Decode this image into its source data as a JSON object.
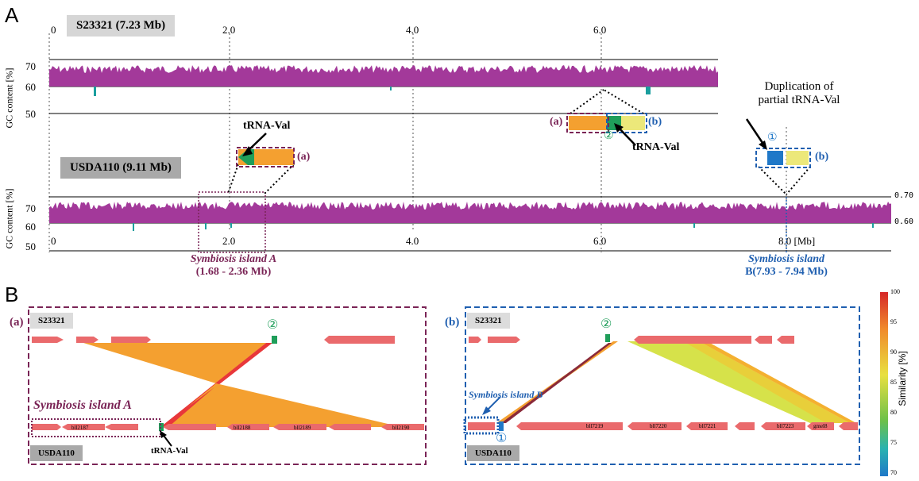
{
  "panels": {
    "a": "A",
    "b": "B"
  },
  "top": {
    "genome1": "S23321 (7.23 Mb)",
    "genome2": "USDA110 (9.11 Mb)",
    "gc_axis_label": "GC content  [%]",
    "gc_ticks_top": [
      "70",
      "60",
      "50"
    ],
    "gc_ticks_bottom": [
      "70",
      "60",
      "50"
    ],
    "scale_top": [
      "0",
      "2.0",
      "4.0",
      "6.0"
    ],
    "scale_bottom": [
      "0",
      "2.0",
      "4.0",
      "6.0",
      "8.0 [Mb]"
    ],
    "right_ticks": [
      "0.70",
      "0.60"
    ],
    "trna_label": "tRNA-Val",
    "trna_label2": "tRNA-Val",
    "duplication_note_line1": "Duplication of",
    "duplication_note_line2": "partial tRNA-Val",
    "mark_a": "(a)",
    "mark_a2": "(a)",
    "mark_b": "(b)",
    "mark_b2": "(b)",
    "circle_1": "①",
    "circle_2": "②",
    "island_a_title": "Symbiosis island A",
    "island_a_range": "(1.68 - 2.36 Mb)",
    "island_b_title": "Symbiosis island",
    "island_b_range": "B(7.93 - 7.94 Mb)"
  },
  "bottom": {
    "left_tag": "(a)",
    "right_tag": "(b)",
    "s_label": "S23321",
    "u_label": "USDA110",
    "s_label_r": "S23321",
    "u_label_r": "USDA110",
    "island_a": "Symbiosis island A",
    "island_b": "Symbiosis island B",
    "trna_val": "tRNA-Val",
    "circle_2": "②",
    "circle_1": "①",
    "genes_left": [
      "bll2187",
      "bll2188",
      "bll2189",
      "bll2190"
    ],
    "genes_right": [
      "bll7219",
      "bll7220",
      "bll7221",
      "bll7223",
      "gmel8"
    ],
    "similarity_label": "Similarity [%]",
    "similarity_ticks": [
      "100",
      "95",
      "90",
      "85",
      "80",
      "75",
      "70"
    ]
  },
  "colors": {
    "gc": "#a3399a",
    "gc_low": "#1a9e9e",
    "orange": "#f4a030",
    "red": "#e8373a",
    "gene": "#ea6a6c",
    "green": "#1f9e5a",
    "yellow": "#ece87a",
    "blue": "#1f5fb0",
    "purple_box": "#7a2456"
  }
}
